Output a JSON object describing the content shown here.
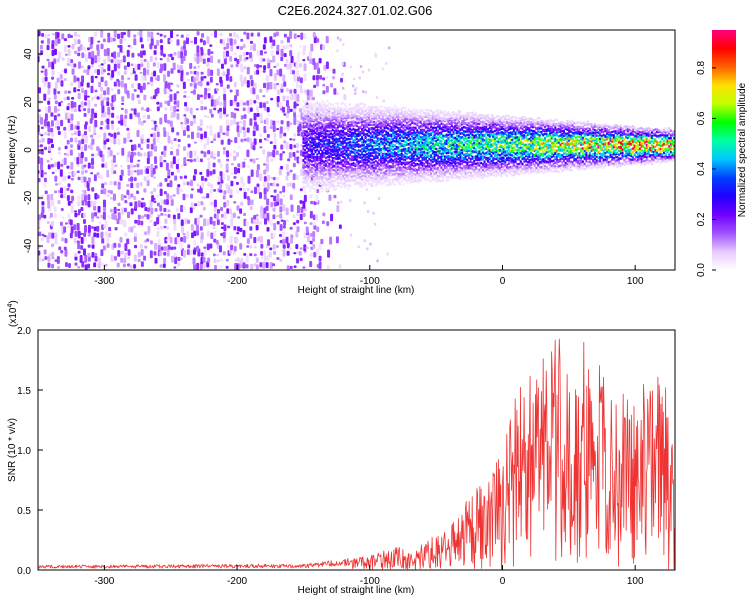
{
  "title": "C2E6.2024.327.01.02.G06",
  "chart_data": [
    {
      "type": "heatmap",
      "xlabel": "Height of straight line (km)",
      "ylabel": "Frequency (Hz)",
      "xlim": [
        -350,
        130
      ],
      "ylim": [
        -50,
        50
      ],
      "xticks": [
        -300,
        -200,
        -100,
        0,
        100
      ],
      "yticks": [
        -40,
        -20,
        0,
        20,
        40
      ],
      "xtick_labels": [
        "-300",
        "-200",
        "-100",
        "0",
        "100"
      ],
      "ytick_labels": [
        "-40",
        "-20",
        "0",
        "20",
        "40"
      ],
      "colorbar": {
        "label": "Normalized spectral amplitude",
        "range": [
          0,
          0.95
        ],
        "ticks": [
          0.0,
          0.2,
          0.4,
          0.6,
          0.8
        ],
        "tick_labels": [
          "0.0",
          "0.2",
          "0.4",
          "0.6",
          "0.8"
        ],
        "colormap": [
          "#ffffff",
          "#e6c8ff",
          "#a050ff",
          "#7000ff",
          "#2000ff",
          "#0040ff",
          "#00c8ff",
          "#00ffa0",
          "#00ff00",
          "#c0ff00",
          "#ffe000",
          "#ff6000",
          "#ff0000",
          "#ff0080"
        ]
      },
      "regions": [
        {
          "name": "diffuse noise",
          "x_range": [
            -350,
            -120
          ],
          "freq_range": [
            -50,
            50
          ],
          "amplitude": 0.2
        },
        {
          "name": "signal band",
          "x_range": [
            -150,
            130
          ],
          "center_freq": 2,
          "half_width_start": 12,
          "half_width_end": 4,
          "peak_amplitude": 0.95
        }
      ]
    },
    {
      "type": "line",
      "xlabel": "Height of straight line (km)",
      "ylabel": "SNR (10 * v/v)",
      "y_scale_label": "(x10^4)",
      "xlim": [
        -350,
        130
      ],
      "ylim": [
        0,
        2.0
      ],
      "xticks": [
        -300,
        -200,
        -100,
        0,
        100
      ],
      "yticks": [
        0.0,
        0.5,
        1.0,
        1.5,
        2.0
      ],
      "xtick_labels": [
        "-300",
        "-200",
        "-100",
        "0",
        "100"
      ],
      "ytick_labels": [
        "0.0",
        "0.5",
        "1.0",
        "1.5",
        "2.0"
      ],
      "color": "#ee3333",
      "envelope": {
        "x": [
          -350,
          -150,
          -100,
          -80,
          -70,
          -50,
          -40,
          -30,
          -20,
          -10,
          0,
          10,
          20,
          40,
          60,
          80,
          100,
          120,
          130
        ],
        "y": [
          0.04,
          0.05,
          0.12,
          0.2,
          0.15,
          0.3,
          0.35,
          0.55,
          0.7,
          0.95,
          1.0,
          1.5,
          1.6,
          2.0,
          1.95,
          1.6,
          1.5,
          1.7,
          1.1
        ]
      }
    }
  ]
}
